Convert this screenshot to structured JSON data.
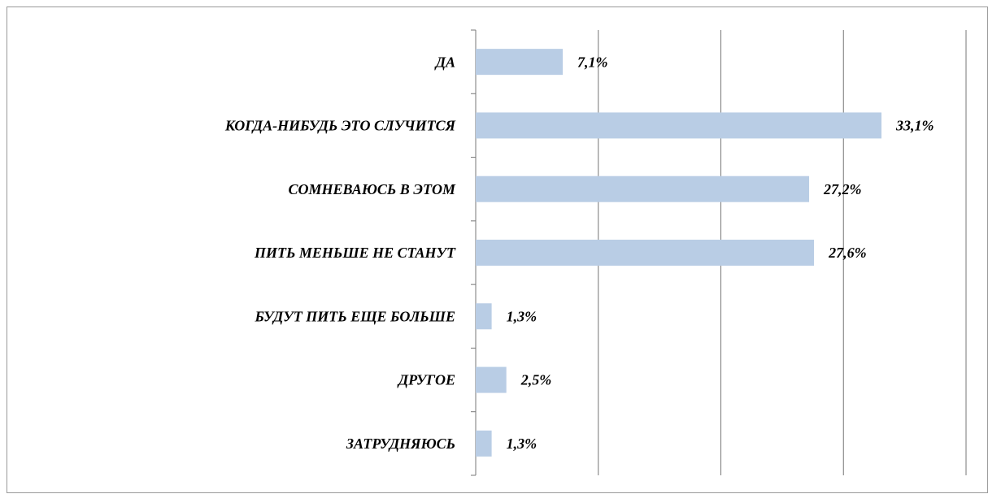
{
  "chart_data": {
    "type": "bar",
    "orientation": "horizontal",
    "categories": [
      "ДА",
      "КОГДА-НИБУДЬ ЭТО СЛУЧИТСЯ",
      "СОМНЕВАЮСЬ В ЭТОМ",
      "ПИТЬ МЕНЬШЕ НЕ СТАНУТ",
      "БУДУТ ПИТЬ ЕЩЕ БОЛЬШЕ",
      "ДРУГОЕ",
      "ЗАТРУДНЯЮСЬ"
    ],
    "values": [
      7.1,
      33.1,
      27.2,
      27.6,
      1.3,
      2.5,
      1.3
    ],
    "value_labels": [
      "7,1%",
      "33,1%",
      "27,2%",
      "27,6%",
      "1,3%",
      "2,5%",
      "1,3%"
    ],
    "color": "#b9cde5",
    "xlim": [
      0,
      40
    ],
    "xticks": [
      0,
      10,
      20,
      30,
      40
    ],
    "grid": true
  }
}
